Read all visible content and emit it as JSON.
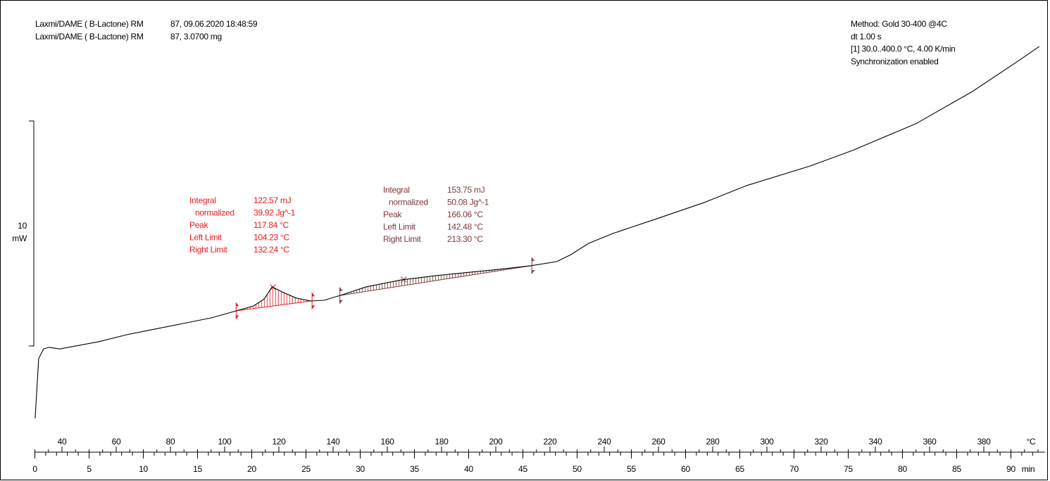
{
  "chart_data": {
    "type": "line",
    "header_left": [
      [
        "Laxmi/DAME ( B-Lactone) RM",
        "87, 09.06.2020 18:48:59"
      ],
      [
        "Laxmi/DAME ( B-Lactone) RM",
        "87, 3.0700 mg"
      ]
    ],
    "header_right": [
      "Method: Gold 30-400 @4C",
      "dt 1.00 s",
      "[1]  30.0..400.0 °C, 4.00 K/min",
      "Synchronization enabled"
    ],
    "color": "#000000",
    "x": [
      30.1,
      31.4,
      33.2,
      35.3,
      39.2,
      53.5,
      63.9,
      71.7,
      84.7,
      95.1,
      104.2,
      110.7,
      114.6,
      117.5,
      121.1,
      126.3,
      131.8,
      136.7,
      142.7,
      152.3,
      165.3,
      178.3,
      199.1,
      212.6,
      222.5,
      227.7,
      234.2,
      243.2,
      258.8,
      277.0,
      292.6,
      316.0,
      331.6,
      355.0,
      375.8,
      391.4,
      400.5
    ],
    "values": [
      -3.22,
      -0.56,
      -0.13,
      -0.06,
      -0.13,
      0.19,
      0.5,
      0.69,
      1.0,
      1.25,
      1.56,
      1.78,
      2.09,
      2.63,
      2.41,
      2.13,
      2.0,
      2.03,
      2.25,
      2.63,
      2.94,
      3.13,
      3.38,
      3.56,
      3.75,
      4.06,
      4.56,
      5.0,
      5.63,
      6.38,
      7.13,
      8.0,
      8.69,
      9.88,
      11.31,
      12.56,
      13.31
    ],
    "xlim": [
      30,
      400
    ],
    "xticks": [
      40,
      60,
      80,
      100,
      120,
      140,
      160,
      180,
      200,
      220,
      240,
      260,
      280,
      300,
      320,
      340,
      360,
      380
    ],
    "xminor": 5,
    "xlabel": "°C",
    "x2lim": [
      0,
      92.5
    ],
    "x2ticks": [
      0,
      5,
      10,
      15,
      20,
      25,
      30,
      35,
      40,
      45,
      50,
      55,
      60,
      65,
      70,
      75,
      80,
      85,
      90
    ],
    "x2minor": 1,
    "x2label": "min",
    "ylim": [
      -3.5,
      15
    ],
    "scale_bar": {
      "value": 10,
      "unit": "mW"
    },
    "integrations": [
      {
        "color": "#e8191e",
        "rows": [
          {
            "label": "Integral",
            "value": 122.57,
            "value_label": "122.57 mJ"
          },
          {
            "label": "normalized",
            "value": 39.92,
            "value_label": "39.92 Jg^-1"
          },
          {
            "label": "Peak",
            "value": 117.84,
            "value_label": "117.84 °C"
          },
          {
            "label": "Left Limit",
            "value": 104.23,
            "value_label": "104.23 °C"
          },
          {
            "label": "Right Limit",
            "value": 132.24,
            "value_label": "132.24 °C"
          }
        ]
      },
      {
        "color": "#7b3b3b",
        "rows": [
          {
            "label": "Integral",
            "value": 153.75,
            "value_label": "153.75 mJ"
          },
          {
            "label": "normalized",
            "value": 50.08,
            "value_label": "50.08 Jg^-1"
          },
          {
            "label": "Peak",
            "value": 166.06,
            "value_label": "166.06 °C"
          },
          {
            "label": "Left Limit",
            "value": 142.48,
            "value_label": "142.48 °C"
          },
          {
            "label": "Right Limit",
            "value": 213.3,
            "value_label": "213.30 °C"
          }
        ]
      }
    ]
  }
}
